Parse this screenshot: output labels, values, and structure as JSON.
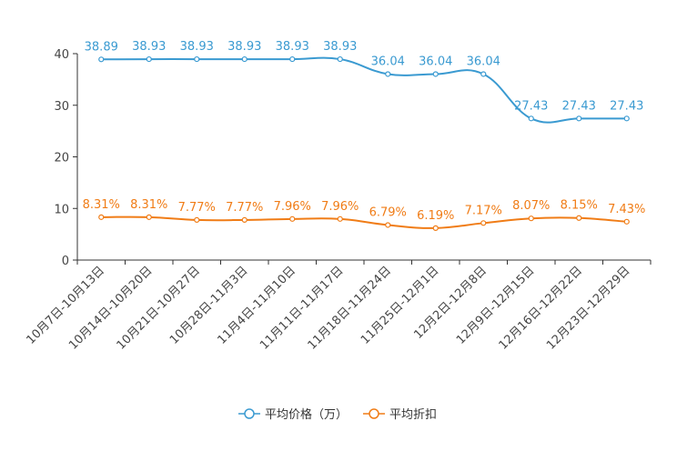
{
  "chart_data": {
    "type": "line",
    "categories": [
      "10月7日-10月13日",
      "10月14日-10月20日",
      "10月21日-10月27日",
      "10月28日-11月3日",
      "11月4日-11月10日",
      "11月11日-11月17日",
      "11月18日-11月24日",
      "11月25日-12月1日",
      "12月2日-12月8日",
      "12月9日-12月15日",
      "12月16日-12月22日",
      "12月23日-12月29日"
    ],
    "ylim": [
      0,
      40
    ],
    "yticks": [
      0,
      10,
      20,
      30,
      40
    ],
    "series": [
      {
        "name": "平均价格（万）",
        "color": "#3a9ad1",
        "values": [
          38.89,
          38.93,
          38.93,
          38.93,
          38.93,
          38.93,
          36.04,
          36.04,
          36.04,
          27.43,
          27.43,
          27.43
        ],
        "labels": [
          "38.89",
          "38.93",
          "38.93",
          "38.93",
          "38.93",
          "38.93",
          "36.04",
          "36.04",
          "36.04",
          "27.43",
          "27.43",
          "27.43"
        ]
      },
      {
        "name": "平均折扣",
        "color": "#f07c16",
        "values": [
          8.31,
          8.31,
          7.77,
          7.77,
          7.96,
          7.96,
          6.79,
          6.19,
          7.17,
          8.07,
          8.15,
          7.43
        ],
        "labels": [
          "8.31%",
          "8.31%",
          "7.77%",
          "7.77%",
          "7.96%",
          "7.96%",
          "6.79%",
          "6.19%",
          "7.17%",
          "8.07%",
          "8.15%",
          "7.43%"
        ]
      }
    ],
    "legend_position": "bottom-center"
  }
}
